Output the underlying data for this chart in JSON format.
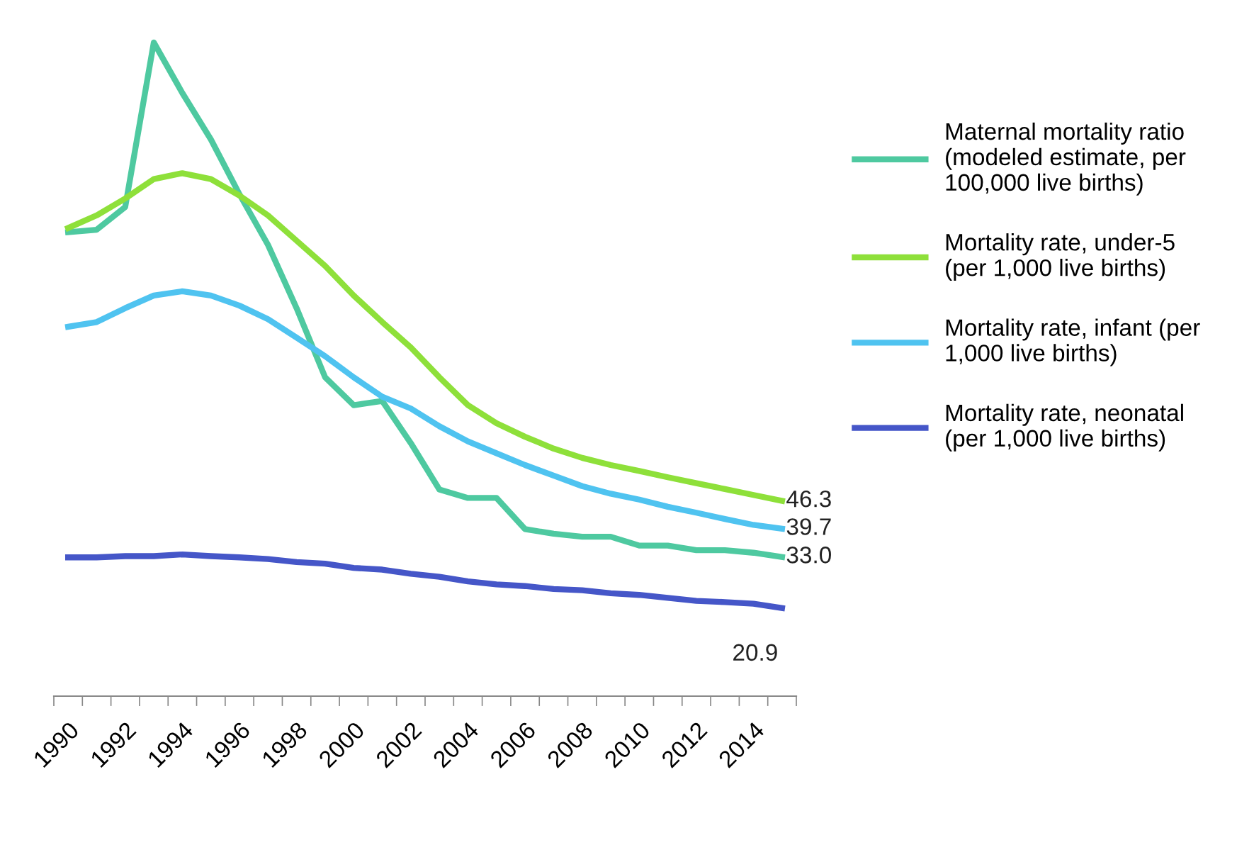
{
  "chart_data": {
    "type": "line",
    "categories": [
      "1990",
      null,
      "1992",
      null,
      "1994",
      null,
      "1996",
      null,
      "1998",
      null,
      "2000",
      null,
      "2002",
      null,
      "2004",
      null,
      "2006",
      null,
      "2008",
      null,
      "2010",
      null,
      "2012",
      null,
      "2014",
      null
    ],
    "tick_labels": "x",
    "grid": false,
    "legend": "right",
    "marker": "none",
    "line_style": "solid",
    "series": [
      {
        "name": "Maternal mortality ratio\n(modeled estimate, per\n100,000 live births)",
        "color": "#4ec9a0",
        "values": [
          110,
          110.6,
          116,
          155,
          143,
          132,
          119,
          107,
          92,
          75.6,
          69,
          70,
          60,
          49,
          47,
          47,
          39.6,
          38.5,
          37.8,
          37.8,
          35.7,
          35.7,
          34.6,
          34.6,
          34,
          33.0
        ],
        "value_labels": [
          null,
          null,
          null,
          null,
          null,
          null,
          null,
          null,
          null,
          null,
          null,
          null,
          null,
          null,
          null,
          null,
          null,
          null,
          null,
          null,
          null,
          null,
          null,
          null,
          null,
          "33.0"
        ]
      },
      {
        "name": "Mortality rate, under-5\n(per 1,000 live births)",
        "color": "#8ee03a",
        "values": [
          111,
          114,
          118,
          122.6,
          124,
          122.6,
          118.7,
          114,
          108,
          102,
          95,
          88.7,
          82.7,
          75.6,
          69,
          64.7,
          61.5,
          58.7,
          56.5,
          54.8,
          53.4,
          51.9,
          50.5,
          49.1,
          47.7,
          46.3
        ],
        "value_labels": [
          null,
          null,
          null,
          null,
          null,
          null,
          null,
          null,
          null,
          null,
          null,
          null,
          null,
          null,
          null,
          null,
          null,
          null,
          null,
          null,
          null,
          null,
          null,
          null,
          null,
          "46.3"
        ]
      },
      {
        "name": "Mortality rate, infant (per\n1,000 live births)",
        "color": "#4fc3f0",
        "values": [
          87.6,
          88.7,
          92,
          95,
          96,
          95,
          92.6,
          89.4,
          85,
          80.6,
          75.6,
          71,
          68.2,
          64,
          60.4,
          57.6,
          54.8,
          52.3,
          49.8,
          48,
          46.6,
          44.9,
          43.5,
          42,
          40.6,
          39.7
        ],
        "value_labels": [
          null,
          null,
          null,
          null,
          null,
          null,
          null,
          null,
          null,
          null,
          null,
          null,
          null,
          null,
          null,
          null,
          null,
          null,
          null,
          null,
          null,
          null,
          null,
          null,
          null,
          "39.7"
        ]
      },
      {
        "name": "Mortality rate, neonatal\n(per 1,000 live births)",
        "color": "#4556c8",
        "values": [
          32.9,
          32.9,
          33.2,
          33.2,
          33.6,
          33.2,
          32.9,
          32.5,
          31.8,
          31.4,
          30.4,
          30,
          29,
          28.3,
          27.2,
          26.5,
          26.1,
          25.4,
          25.1,
          24.4,
          24,
          23.3,
          22.6,
          22.3,
          21.9,
          20.9
        ],
        "value_labels": [
          null,
          null,
          null,
          null,
          null,
          null,
          null,
          null,
          null,
          null,
          null,
          null,
          null,
          null,
          null,
          null,
          null,
          null,
          null,
          null,
          null,
          null,
          null,
          null,
          null,
          "20.9"
        ]
      }
    ]
  }
}
